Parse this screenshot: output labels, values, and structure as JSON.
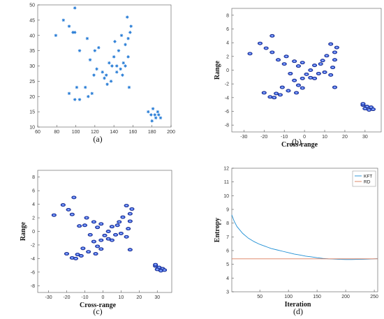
{
  "chart_data": [
    {
      "panel": "a",
      "type": "scatter",
      "caption": "(a)",
      "xlim": [
        60,
        200
      ],
      "ylim": [
        10,
        50
      ],
      "xticks": [
        60,
        80,
        100,
        120,
        140,
        160,
        180,
        200
      ],
      "yticks": [
        10,
        15,
        20,
        25,
        30,
        35,
        40,
        45,
        50
      ],
      "xlabel": "",
      "ylabel": "",
      "marker": "asterisk",
      "color": "#1f77d4",
      "points": [
        [
          79,
          40
        ],
        [
          87,
          45
        ],
        [
          93,
          43
        ],
        [
          97,
          41
        ],
        [
          99,
          41
        ],
        [
          99,
          49
        ],
        [
          104,
          35
        ],
        [
          93,
          21
        ],
        [
          99,
          19
        ],
        [
          104,
          19
        ],
        [
          101,
          23
        ],
        [
          110,
          23
        ],
        [
          113,
          20
        ],
        [
          112,
          39
        ],
        [
          115,
          32
        ],
        [
          117,
          21
        ],
        [
          120,
          35
        ],
        [
          119,
          27
        ],
        [
          122,
          29
        ],
        [
          124,
          36
        ],
        [
          128,
          28
        ],
        [
          130,
          26
        ],
        [
          132,
          27
        ],
        [
          133,
          24
        ],
        [
          135,
          31
        ],
        [
          137,
          25
        ],
        [
          138,
          30
        ],
        [
          140,
          33
        ],
        [
          141,
          38
        ],
        [
          143,
          30
        ],
        [
          143,
          28
        ],
        [
          145,
          35
        ],
        [
          147,
          29
        ],
        [
          150,
          31
        ],
        [
          152,
          37
        ],
        [
          154,
          46
        ],
        [
          152,
          30
        ],
        [
          155,
          33
        ],
        [
          155,
          39
        ],
        [
          157,
          41
        ],
        [
          158,
          43
        ],
        [
          156,
          23
        ],
        [
          149,
          27
        ],
        [
          148,
          40
        ],
        [
          176,
          15
        ],
        [
          179,
          14
        ],
        [
          181,
          16
        ],
        [
          183,
          14
        ],
        [
          180,
          12
        ],
        [
          184,
          13
        ],
        [
          186,
          15
        ],
        [
          187,
          14
        ],
        [
          189,
          13
        ]
      ]
    },
    {
      "panel": "b",
      "type": "scatter",
      "caption": "(b)",
      "xlim": [
        -36,
        38
      ],
      "ylim": [
        -9,
        9
      ],
      "xticks": [
        -30,
        -20,
        -10,
        0,
        10,
        20,
        30
      ],
      "yticks": [
        -8,
        -6,
        -4,
        -2,
        0,
        2,
        4,
        6,
        8
      ],
      "xlabel": "Cross-range",
      "ylabel": "Range",
      "marker": "blob",
      "color": "#1f3fd4",
      "points": [
        [
          -27,
          2.4
        ],
        [
          -22,
          3.9
        ],
        [
          -19,
          3.2
        ],
        [
          -16,
          2.6
        ],
        [
          -16,
          5.0
        ],
        [
          -13,
          1.5
        ],
        [
          -9,
          2.0
        ],
        [
          -10,
          0.9
        ],
        [
          -7,
          -0.5
        ],
        [
          -5,
          1.3
        ],
        [
          -3,
          0.6
        ],
        [
          -1,
          1.1
        ],
        [
          -5,
          -1.5
        ],
        [
          -3,
          -2.2
        ],
        [
          -1,
          -1.2
        ],
        [
          1,
          -0.6
        ],
        [
          3,
          -1.1
        ],
        [
          5,
          -1.2
        ],
        [
          -8,
          -3.0
        ],
        [
          -11,
          -2.5
        ],
        [
          -14,
          -3.4
        ],
        [
          -17,
          -3.9
        ],
        [
          -20,
          -3.3
        ],
        [
          -15,
          -4.0
        ],
        [
          -12,
          -3.6
        ],
        [
          -4,
          -3.3
        ],
        [
          -1,
          -2.6
        ],
        [
          3,
          0.0
        ],
        [
          5,
          0.7
        ],
        [
          7,
          -0.5
        ],
        [
          8,
          0.9
        ],
        [
          9,
          1.4
        ],
        [
          10,
          -0.3
        ],
        [
          11,
          2.1
        ],
        [
          13,
          3.8
        ],
        [
          13,
          -0.7
        ],
        [
          14,
          0.4
        ],
        [
          15,
          1.5
        ],
        [
          15,
          2.6
        ],
        [
          16,
          3.3
        ],
        [
          15,
          -2.5
        ],
        [
          29,
          -5.1
        ],
        [
          31,
          -5.3
        ],
        [
          33,
          -5.4
        ],
        [
          30,
          -5.6
        ],
        [
          32,
          -5.8
        ],
        [
          34,
          -5.7
        ],
        [
          29,
          -4.9
        ]
      ]
    },
    {
      "panel": "c",
      "type": "scatter",
      "caption": "(c)",
      "xlim": [
        -36,
        38
      ],
      "ylim": [
        -9,
        9
      ],
      "xticks": [
        -30,
        -20,
        -10,
        0,
        10,
        20,
        30
      ],
      "yticks": [
        -8,
        -6,
        -4,
        -2,
        0,
        2,
        4,
        6,
        8
      ],
      "xlabel": "Cross-range",
      "ylabel": "Range",
      "marker": "blob",
      "color": "#1f3fd4",
      "points": [
        [
          -27,
          2.4
        ],
        [
          -22,
          3.9
        ],
        [
          -19,
          3.2
        ],
        [
          -17,
          2.5
        ],
        [
          -16,
          5.0
        ],
        [
          -13,
          0.8
        ],
        [
          -9,
          2.0
        ],
        [
          -10,
          0.9
        ],
        [
          -7,
          -0.5
        ],
        [
          -5,
          1.4
        ],
        [
          -3,
          0.6
        ],
        [
          -1,
          1.1
        ],
        [
          -5,
          -1.5
        ],
        [
          -3,
          -2.2
        ],
        [
          -1,
          -1.3
        ],
        [
          1,
          -0.6
        ],
        [
          3,
          -1.1
        ],
        [
          5,
          -1.3
        ],
        [
          -8,
          -3.0
        ],
        [
          -11,
          -2.5
        ],
        [
          -14,
          -3.4
        ],
        [
          -17,
          -3.9
        ],
        [
          -20,
          -3.3
        ],
        [
          -15,
          -4.0
        ],
        [
          -12,
          -3.6
        ],
        [
          -4,
          -3.3
        ],
        [
          -1,
          -2.6
        ],
        [
          3,
          0.0
        ],
        [
          5,
          0.7
        ],
        [
          7,
          -0.5
        ],
        [
          8,
          0.9
        ],
        [
          9,
          1.4
        ],
        [
          10,
          -0.3
        ],
        [
          11,
          2.1
        ],
        [
          13,
          3.8
        ],
        [
          13,
          -0.8
        ],
        [
          14,
          0.4
        ],
        [
          15,
          1.5
        ],
        [
          15,
          2.6
        ],
        [
          16,
          3.3
        ],
        [
          15,
          -2.7
        ],
        [
          29,
          -5.1
        ],
        [
          31,
          -5.3
        ],
        [
          33,
          -5.5
        ],
        [
          30,
          -5.6
        ],
        [
          32,
          -5.8
        ],
        [
          34,
          -5.7
        ],
        [
          29,
          -4.9
        ]
      ]
    },
    {
      "panel": "d",
      "type": "line",
      "caption": "(d)",
      "xlim": [
        1,
        256
      ],
      "ylim": [
        3,
        12
      ],
      "xticks": [
        50,
        100,
        150,
        200,
        250
      ],
      "yticks": [
        3,
        4,
        5,
        6,
        7,
        8,
        9,
        10,
        11,
        12
      ],
      "xlabel": "Iteration",
      "ylabel": "Entropy",
      "legend_position": "top-right",
      "series": [
        {
          "name": "KFT",
          "color": "#1f8fd4",
          "x": [
            1,
            5,
            10,
            20,
            30,
            40,
            50,
            60,
            70,
            80,
            90,
            100,
            110,
            120,
            130,
            140,
            150,
            160,
            170,
            180,
            190,
            200,
            210,
            220,
            230,
            240,
            250,
            256
          ],
          "y": [
            8.6,
            8.15,
            7.75,
            7.25,
            6.9,
            6.65,
            6.45,
            6.3,
            6.15,
            6.05,
            5.95,
            5.85,
            5.75,
            5.68,
            5.6,
            5.55,
            5.48,
            5.43,
            5.4,
            5.38,
            5.36,
            5.35,
            5.35,
            5.36,
            5.37,
            5.38,
            5.4,
            5.41
          ]
        },
        {
          "name": "RD",
          "color": "#d97b5a",
          "x": [
            1,
            256
          ],
          "y": [
            5.4,
            5.4
          ]
        }
      ]
    }
  ]
}
